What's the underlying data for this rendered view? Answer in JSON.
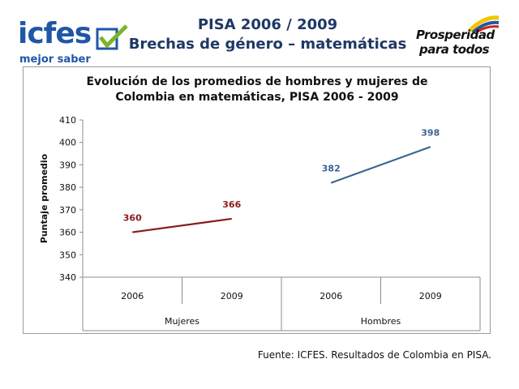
{
  "header": {
    "title_line1": "PISA 2006 / 2009",
    "title_line2": "Brechas de género – matemáticas"
  },
  "logos": {
    "left_word": "icfes",
    "left_tagline": "mejor saber",
    "right_line1": "Prosperidad",
    "right_line2": "para todos"
  },
  "chart_data": {
    "type": "line",
    "title": "Evolución de los promedios de hombres y mujeres de Colombia en matemáticas,  PISA 2006 - 2009",
    "title_line1": "Evolución de los promedios de hombres y mujeres de",
    "title_line2": "Colombia en matemáticas,  PISA 2006 - 2009",
    "ylabel": "Puntaje promedio",
    "ylim": [
      340,
      410
    ],
    "yticks": [
      340,
      350,
      360,
      370,
      380,
      390,
      400,
      410
    ],
    "groups": [
      "Mujeres",
      "Hombres"
    ],
    "categories": [
      "2006",
      "2009",
      "2006",
      "2009"
    ],
    "grid": false,
    "series": [
      {
        "name": "Mujeres",
        "color": "#8b1a1a",
        "x": [
          "2006",
          "2009"
        ],
        "values": [
          360,
          366
        ]
      },
      {
        "name": "Hombres",
        "color": "#3a6494",
        "x": [
          "2006",
          "2009"
        ],
        "values": [
          382,
          398
        ]
      }
    ]
  },
  "footer": {
    "source": "Fuente: ICFES. Resultados de Colombia en PISA."
  }
}
